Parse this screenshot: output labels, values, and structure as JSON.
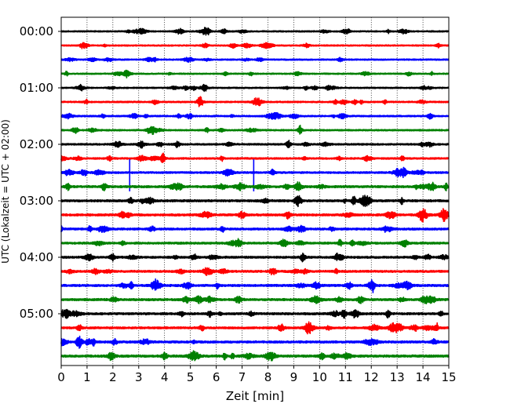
{
  "chart_data": {
    "type": "line",
    "title": "",
    "xlabel": "Zeit  [min]",
    "ylabel": "UTC (Lokalzeit = UTC + 02:00)",
    "xlim": [
      0,
      15
    ],
    "x_ticks": [
      "0",
      "1",
      "2",
      "3",
      "4",
      "5",
      "6",
      "7",
      "8",
      "9",
      "10",
      "11",
      "12",
      "13",
      "14",
      "15"
    ],
    "y_ticks": [
      "00:00",
      "01:00",
      "02:00",
      "03:00",
      "04:00",
      "05:00"
    ],
    "y_tick_values_min": [
      0,
      60,
      120,
      180,
      240,
      300
    ],
    "trace_interval_min": 15,
    "grid": "vertical dotted lines at each minute",
    "series_colors": [
      "#000000",
      "#ff0000",
      "#0000ff",
      "#008000"
    ],
    "traces": [
      {
        "start": "00:00",
        "color": "#000000",
        "amplitude": 0.8
      },
      {
        "start": "00:15",
        "color": "#ff0000",
        "amplitude": 0.8
      },
      {
        "start": "00:30",
        "color": "#0000ff",
        "amplitude": 0.8
      },
      {
        "start": "00:45",
        "color": "#008000",
        "amplitude": 0.8
      },
      {
        "start": "01:00",
        "color": "#000000",
        "amplitude": 0.8
      },
      {
        "start": "01:15",
        "color": "#ff0000",
        "amplitude": 0.9
      },
      {
        "start": "01:30",
        "color": "#0000ff",
        "amplitude": 0.9
      },
      {
        "start": "01:45",
        "color": "#008000",
        "amplitude": 0.9
      },
      {
        "start": "02:00",
        "color": "#000000",
        "amplitude": 1.0
      },
      {
        "start": "02:15",
        "color": "#ff0000",
        "amplitude": 1.0
      },
      {
        "start": "02:30",
        "color": "#0000ff",
        "amplitude": 1.1,
        "spikes_min": [
          2.65,
          7.45
        ]
      },
      {
        "start": "02:45",
        "color": "#008000",
        "amplitude": 1.3
      },
      {
        "start": "03:00",
        "color": "#000000",
        "amplitude": 1.3
      },
      {
        "start": "03:15",
        "color": "#ff0000",
        "amplitude": 1.3
      },
      {
        "start": "03:30",
        "color": "#0000ff",
        "amplitude": 1.2
      },
      {
        "start": "03:45",
        "color": "#008000",
        "amplitude": 1.2
      },
      {
        "start": "04:00",
        "color": "#000000",
        "amplitude": 1.2
      },
      {
        "start": "04:15",
        "color": "#ff0000",
        "amplitude": 1.2
      },
      {
        "start": "04:30",
        "color": "#0000ff",
        "amplitude": 1.3
      },
      {
        "start": "04:45",
        "color": "#008000",
        "amplitude": 1.3
      },
      {
        "start": "05:00",
        "color": "#000000",
        "amplitude": 1.3
      },
      {
        "start": "05:15",
        "color": "#ff0000",
        "amplitude": 1.2
      },
      {
        "start": "05:30",
        "color": "#0000ff",
        "amplitude": 1.3
      },
      {
        "start": "05:45",
        "color": "#008000",
        "amplitude": 1.4
      }
    ]
  }
}
